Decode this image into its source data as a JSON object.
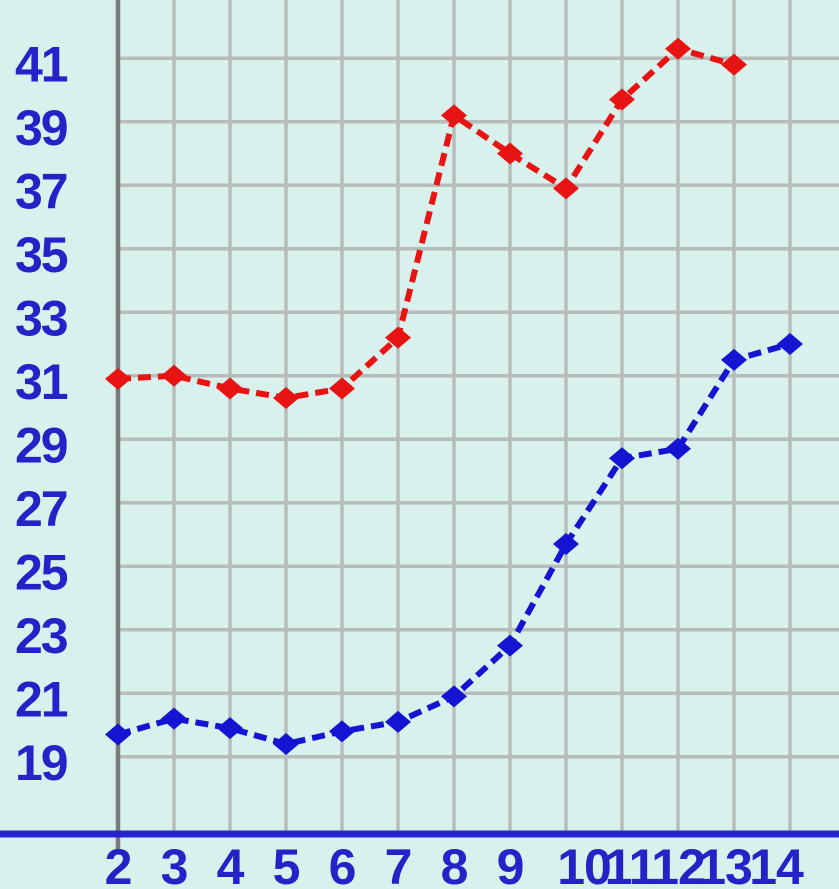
{
  "chart_data": {
    "type": "line",
    "title": "",
    "xlabel": "",
    "ylabel": "",
    "x": [
      2,
      3,
      4,
      5,
      6,
      7,
      8,
      9,
      10,
      11,
      12,
      13,
      14
    ],
    "series": [
      {
        "name": "red-series",
        "color": "#e81414",
        "values": [
          30.9,
          31,
          30.6,
          30.3,
          30.6,
          32.2,
          39.2,
          38,
          36.9,
          39.7,
          41.3,
          40.8,
          null
        ]
      },
      {
        "name": "blue-series",
        "color": "#1414d2",
        "values": [
          19.7,
          20.2,
          19.9,
          19.4,
          19.8,
          20.1,
          20.9,
          22.5,
          25.7,
          28.4,
          28.7,
          31.5,
          32
        ]
      }
    ],
    "x_tick_labels": [
      "2",
      "3",
      "4",
      "5",
      "6",
      "7",
      "8",
      "9",
      "10",
      "11",
      "12",
      "13",
      "14"
    ],
    "y_tick_labels": [
      "41",
      "39",
      "37",
      "35",
      "33",
      "31",
      "29",
      "27",
      "25",
      "23",
      "21",
      "19"
    ],
    "y_tick_values": [
      41,
      39,
      37,
      35,
      33,
      31,
      29,
      27,
      25,
      23,
      21,
      19
    ],
    "xlim": [
      2,
      14
    ],
    "ylim": [
      19,
      41
    ],
    "grid": true,
    "legend": "none",
    "marker": "diamond",
    "line_style": "dashed"
  },
  "colors": {
    "background": "#d9f1ec",
    "gridline": "#b7bcba",
    "y_axis_line": "#7a7a7a",
    "x_axis_line": "#2424cf",
    "tick_label": "#2323c8",
    "series_red": "#e81414",
    "series_blue": "#1414d2"
  }
}
